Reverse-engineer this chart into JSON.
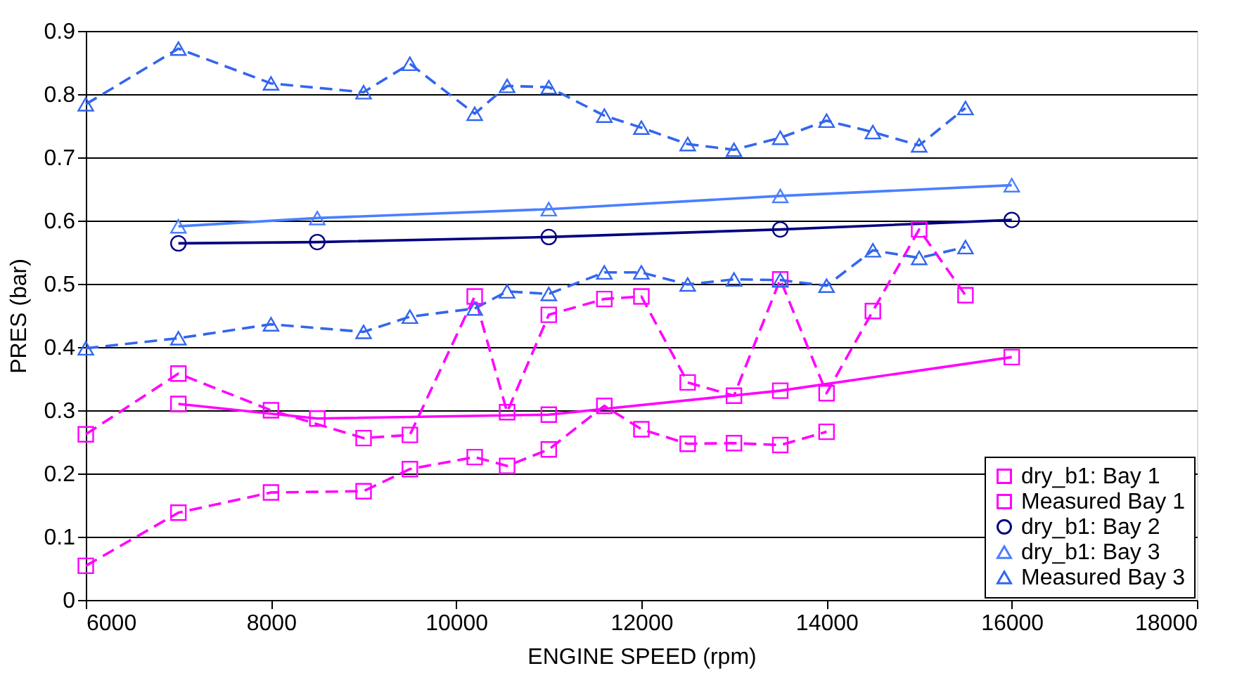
{
  "chart_data": {
    "type": "line",
    "xlabel": "ENGINE SPEED (rpm)",
    "ylabel": "PRES (bar)",
    "xlim": [
      6000,
      18000
    ],
    "xticks": [
      6000,
      8000,
      10000,
      12000,
      14000,
      16000,
      18000
    ],
    "ylim": [
      0,
      0.9
    ],
    "yticks": [
      0,
      0.1,
      0.2,
      0.3,
      0.4,
      0.5,
      0.6,
      0.7,
      0.8,
      0.9
    ],
    "grid": "y",
    "legend": "bottom right",
    "series": [
      {
        "name": "dry_b1: Bay 1",
        "color": "#ff00ff",
        "marker": "square",
        "line_style": "solid",
        "x": [
          7000,
          8500,
          11000,
          13500,
          16000
        ],
        "values": [
          0.31,
          0.287,
          0.293,
          0.331,
          0.384
        ]
      },
      {
        "name": "Measured Bay 1",
        "color": "#ff00ff",
        "marker": "square",
        "line_style": "dashed",
        "x": [
          6000,
          7000,
          8000,
          9000,
          9500,
          10200,
          10550,
          11000,
          11600,
          12000,
          12500,
          13000,
          13500,
          14000,
          14500,
          15000,
          15500
        ],
        "values": [
          0.262,
          0.358,
          0.3,
          0.256,
          0.261,
          0.48,
          0.297,
          0.451,
          0.476,
          0.48,
          0.344,
          0.323,
          0.507,
          0.327,
          0.457,
          0.586,
          0.482
        ]
      },
      {
        "color": "#ff00ff",
        "marker": "square",
        "line_style": "dashed",
        "x": [
          6000,
          7000,
          8000,
          9000,
          9500,
          10200,
          10550,
          11000,
          11600,
          12000,
          12500,
          13000,
          13500,
          14000
        ],
        "values": [
          0.054,
          0.138,
          0.17,
          0.172,
          0.207,
          0.226,
          0.212,
          0.238,
          0.307,
          0.27,
          0.247,
          0.248,
          0.245,
          0.266
        ]
      },
      {
        "name": "dry_b1: Bay 2",
        "color": "#000080",
        "marker": "circle",
        "line_style": "solid",
        "x": [
          7000,
          8500,
          11000,
          13500,
          16000
        ],
        "values": [
          0.564,
          0.566,
          0.574,
          0.586,
          0.601
        ]
      },
      {
        "name": "dry_b1: Bay 3",
        "color": "#4a7fff",
        "marker": "triangle",
        "line_style": "solid",
        "x": [
          7000,
          8500,
          11000,
          13500,
          16000
        ],
        "values": [
          0.591,
          0.604,
          0.618,
          0.639,
          0.656
        ]
      },
      {
        "name": "Measured Bay 3",
        "color": "#3366ee",
        "marker": "triangle",
        "line_style": "dashed",
        "x": [
          6000,
          7000,
          8000,
          9000,
          9500,
          10200,
          10550,
          11000,
          11600,
          12000,
          12500,
          13000,
          13500,
          14000,
          14500,
          15000,
          15500
        ],
        "values": [
          0.398,
          0.414,
          0.436,
          0.424,
          0.448,
          0.461,
          0.488,
          0.484,
          0.518,
          0.518,
          0.499,
          0.507,
          0.506,
          0.497,
          0.553,
          0.541,
          0.558
        ]
      },
      {
        "color": "#3366ee",
        "marker": "triangle",
        "line_style": "dashed",
        "x": [
          6000,
          7000,
          8000,
          9000,
          9500,
          10200,
          10550,
          11000,
          11600,
          12000,
          12500,
          13000,
          13500,
          14000,
          14500,
          15000,
          15500
        ],
        "values": [
          0.784,
          0.872,
          0.817,
          0.803,
          0.848,
          0.769,
          0.813,
          0.811,
          0.766,
          0.747,
          0.721,
          0.712,
          0.731,
          0.758,
          0.74,
          0.719,
          0.778
        ]
      }
    ]
  }
}
